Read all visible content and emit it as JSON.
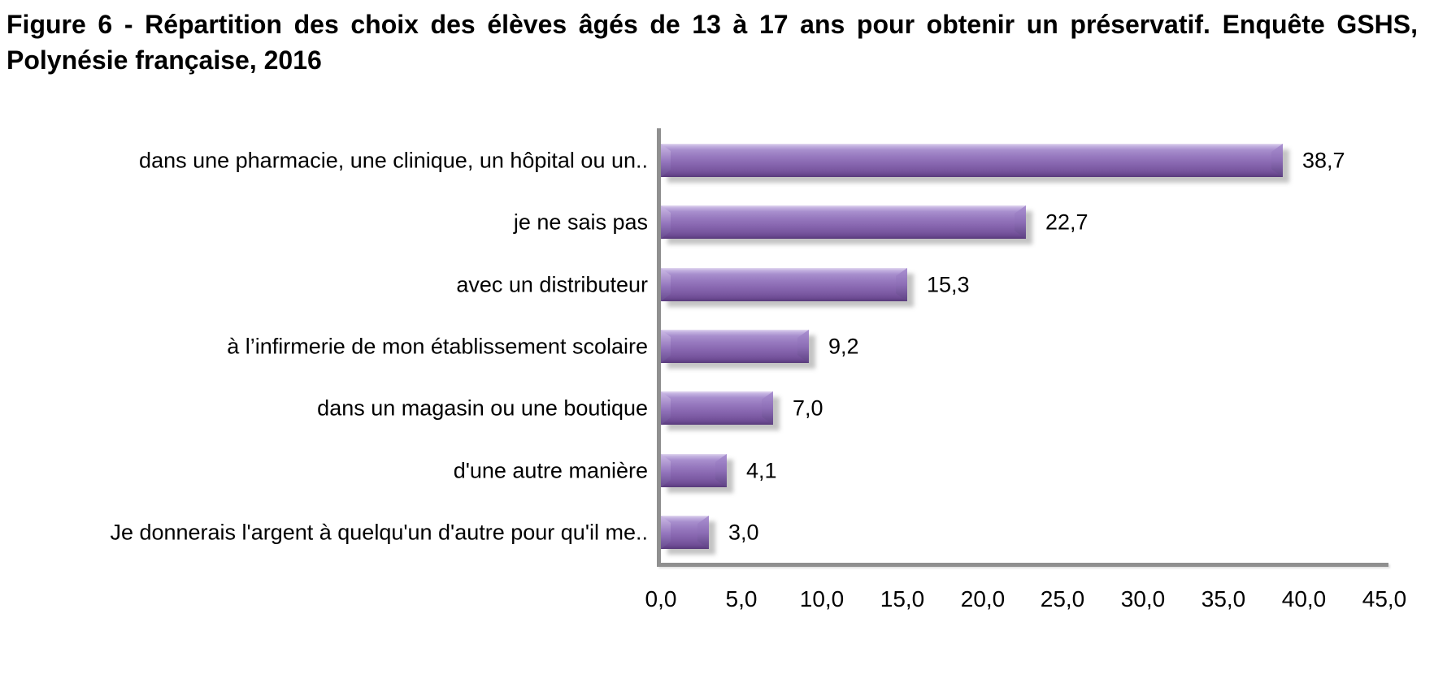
{
  "figure": {
    "title_line1": "Figure 6 - Répartition des choix des élèves âgés de 13 à 17 ans pour obtenir un préservatif. Enquête GSHS,",
    "title_line2": "Polynésie française, 2016"
  },
  "chart_data": {
    "type": "bar",
    "orientation": "horizontal",
    "title": "Figure 6 - Répartition des choix des élèves âgés de 13 à 17 ans pour obtenir un préservatif. Enquête GSHS, Polynésie française, 2016",
    "categories": [
      "dans une pharmacie, une clinique, un hôpital ou un..",
      "je ne sais pas",
      "avec un distributeur",
      "à l’infirmerie de mon établissement scolaire",
      "dans un magasin ou une boutique",
      "d'une autre manière",
      "Je donnerais l'argent à quelqu'un d'autre pour qu'il me.."
    ],
    "values": [
      38.7,
      22.7,
      15.3,
      9.2,
      7.0,
      4.1,
      3.0
    ],
    "value_labels": [
      "38,7",
      "22,7",
      "15,3",
      "9,2",
      "7,0",
      "4,1",
      "3,0"
    ],
    "x_ticks": [
      "0,0",
      "5,0",
      "10,0",
      "15,0",
      "20,0",
      "25,0",
      "30,0",
      "35,0",
      "40,0",
      "45,0"
    ],
    "xlim": [
      0,
      45
    ],
    "xlabel": "",
    "ylabel": "",
    "grid": false,
    "legend": "none",
    "bar_color": "#8064A2",
    "axis_color": "#8F8F8F",
    "text_color": "#000000",
    "background_color": "#FFFFFF"
  }
}
